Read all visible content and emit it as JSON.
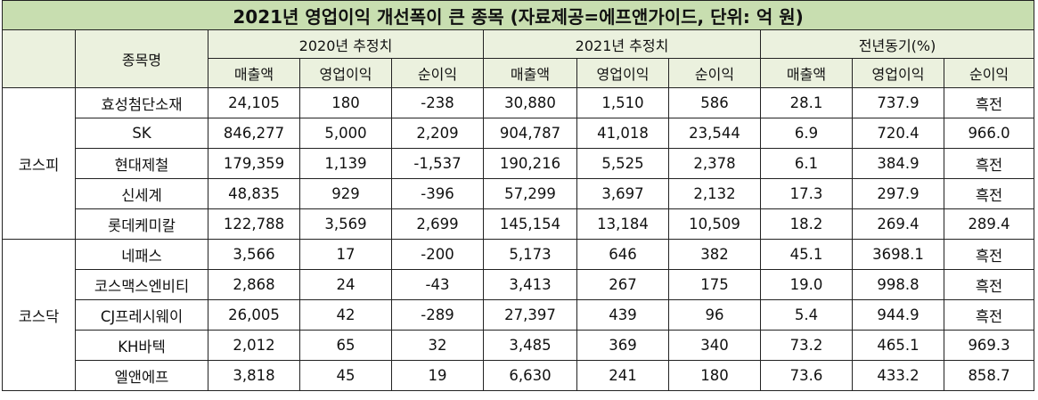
{
  "title": "2021년 영업이익 개선폭이 큰 종목 (자료제공=에프앤가이드, 단위: 억 원)",
  "header": {
    "item_col": "종목명",
    "groups": [
      "2020년 추정치",
      "2021년 추정치",
      "전년동기(%)"
    ],
    "subcols": [
      [
        "매출액",
        "영업이익",
        "순이익"
      ],
      [
        "매출액",
        "영업이익",
        "순이익"
      ],
      [
        "매출액",
        "영업이익",
        "순이익"
      ]
    ]
  },
  "markets": [
    {
      "name": "코스피",
      "rows": [
        {
          "name": "효성첨단소재",
          "cells": [
            "24,105",
            "180",
            "-238",
            "30,880",
            "1,510",
            "586",
            "28.1",
            "737.9",
            "흑전"
          ]
        },
        {
          "name": "SK",
          "cells": [
            "846,277",
            "5,000",
            "2,209",
            "904,787",
            "41,018",
            "23,544",
            "6.9",
            "720.4",
            "966.0"
          ]
        },
        {
          "name": "현대제철",
          "cells": [
            "179,359",
            "1,139",
            "-1,537",
            "190,216",
            "5,525",
            "2,378",
            "6.1",
            "384.9",
            "흑전"
          ]
        },
        {
          "name": "신세계",
          "cells": [
            "48,835",
            "929",
            "-396",
            "57,299",
            "3,697",
            "2,132",
            "17.3",
            "297.9",
            "흑전"
          ]
        },
        {
          "name": "롯데케미칼",
          "cells": [
            "122,788",
            "3,569",
            "2,699",
            "145,154",
            "13,184",
            "10,509",
            "18.2",
            "269.4",
            "289.4"
          ]
        }
      ]
    },
    {
      "name": "코스닥",
      "rows": [
        {
          "name": "네패스",
          "cells": [
            "3,566",
            "17",
            "-200",
            "5,173",
            "646",
            "382",
            "45.1",
            "3698.1",
            "흑전"
          ]
        },
        {
          "name": "코스맥스엔비티",
          "cells": [
            "2,868",
            "24",
            "-43",
            "3,413",
            "267",
            "175",
            "19.0",
            "998.8",
            "흑전"
          ]
        },
        {
          "name": "CJ프레시웨이",
          "cells": [
            "26,005",
            "42",
            "-289",
            "27,397",
            "439",
            "96",
            "5.4",
            "944.9",
            "흑전"
          ]
        },
        {
          "name": "KH바텍",
          "cells": [
            "2,012",
            "65",
            "32",
            "3,485",
            "369",
            "340",
            "73.2",
            "465.1",
            "969.3"
          ]
        },
        {
          "name": "엘앤에프",
          "cells": [
            "3,818",
            "45",
            "19",
            "6,630",
            "241",
            "180",
            "73.6",
            "433.2",
            "858.7"
          ]
        }
      ]
    }
  ],
  "colors": {
    "title_bg": "#c8deb0",
    "header_bg": "#ebf1de",
    "border": "#222222"
  }
}
